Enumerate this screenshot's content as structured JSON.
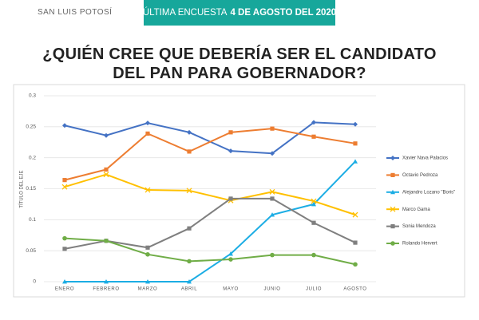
{
  "header": {
    "place": "SAN LUIS POTOSÍ",
    "banner_label": "ÚLTIMA ENCUESTA",
    "banner_date": "4 DE AGOSTO DEL 2020"
  },
  "chart_data": {
    "type": "line",
    "title": "¿QUIÉN CREE QUE DEBERÍA SER EL CANDIDATO DEL PAN PARA GOBERNADOR?",
    "y_label": "TÍTULO DEL EJE",
    "categories": [
      "ENERO",
      "FEBRERO",
      "MARZO",
      "ABRIL",
      "MAYO",
      "JUNIO",
      "JULIO",
      "AGOSTO"
    ],
    "series": [
      {
        "name": "Xavier Nava Palacios",
        "color": "#4472c4",
        "marker": "diamond",
        "values": [
          0.252,
          0.236,
          0.256,
          0.241,
          0.211,
          0.207,
          0.257,
          0.254
        ]
      },
      {
        "name": "Octavio Pedroza",
        "color": "#ed7d31",
        "marker": "square",
        "values": [
          0.164,
          0.181,
          0.239,
          0.21,
          0.241,
          0.247,
          0.234,
          0.223
        ]
      },
      {
        "name": "Alejandro Lozano \"Boris\"",
        "color": "#1cade4",
        "marker": "triangle",
        "values": [
          0,
          0,
          0,
          0,
          0.045,
          0.108,
          0.125,
          0.194
        ]
      },
      {
        "name": "Marco Gama",
        "color": "#ffc000",
        "marker": "x",
        "values": [
          0.153,
          0.173,
          0.148,
          0.147,
          0.131,
          0.145,
          0.13,
          0.108
        ]
      },
      {
        "name": "Sonia Mendoza",
        "color": "#7f7f7f",
        "marker": "square",
        "values": [
          0.053,
          0.066,
          0.055,
          0.086,
          0.134,
          0.134,
          0.095,
          0.063
        ]
      },
      {
        "name": "Rolando Hervert",
        "color": "#70ad47",
        "marker": "circle",
        "values": [
          0.07,
          0.066,
          0.044,
          0.033,
          0.036,
          0.043,
          0.043,
          0.028
        ]
      }
    ],
    "ylim": [
      0,
      0.3
    ],
    "yticks": [
      0,
      0.05,
      0.1,
      0.15,
      0.2,
      0.25,
      0.3
    ],
    "grid": true,
    "legend": "right"
  }
}
